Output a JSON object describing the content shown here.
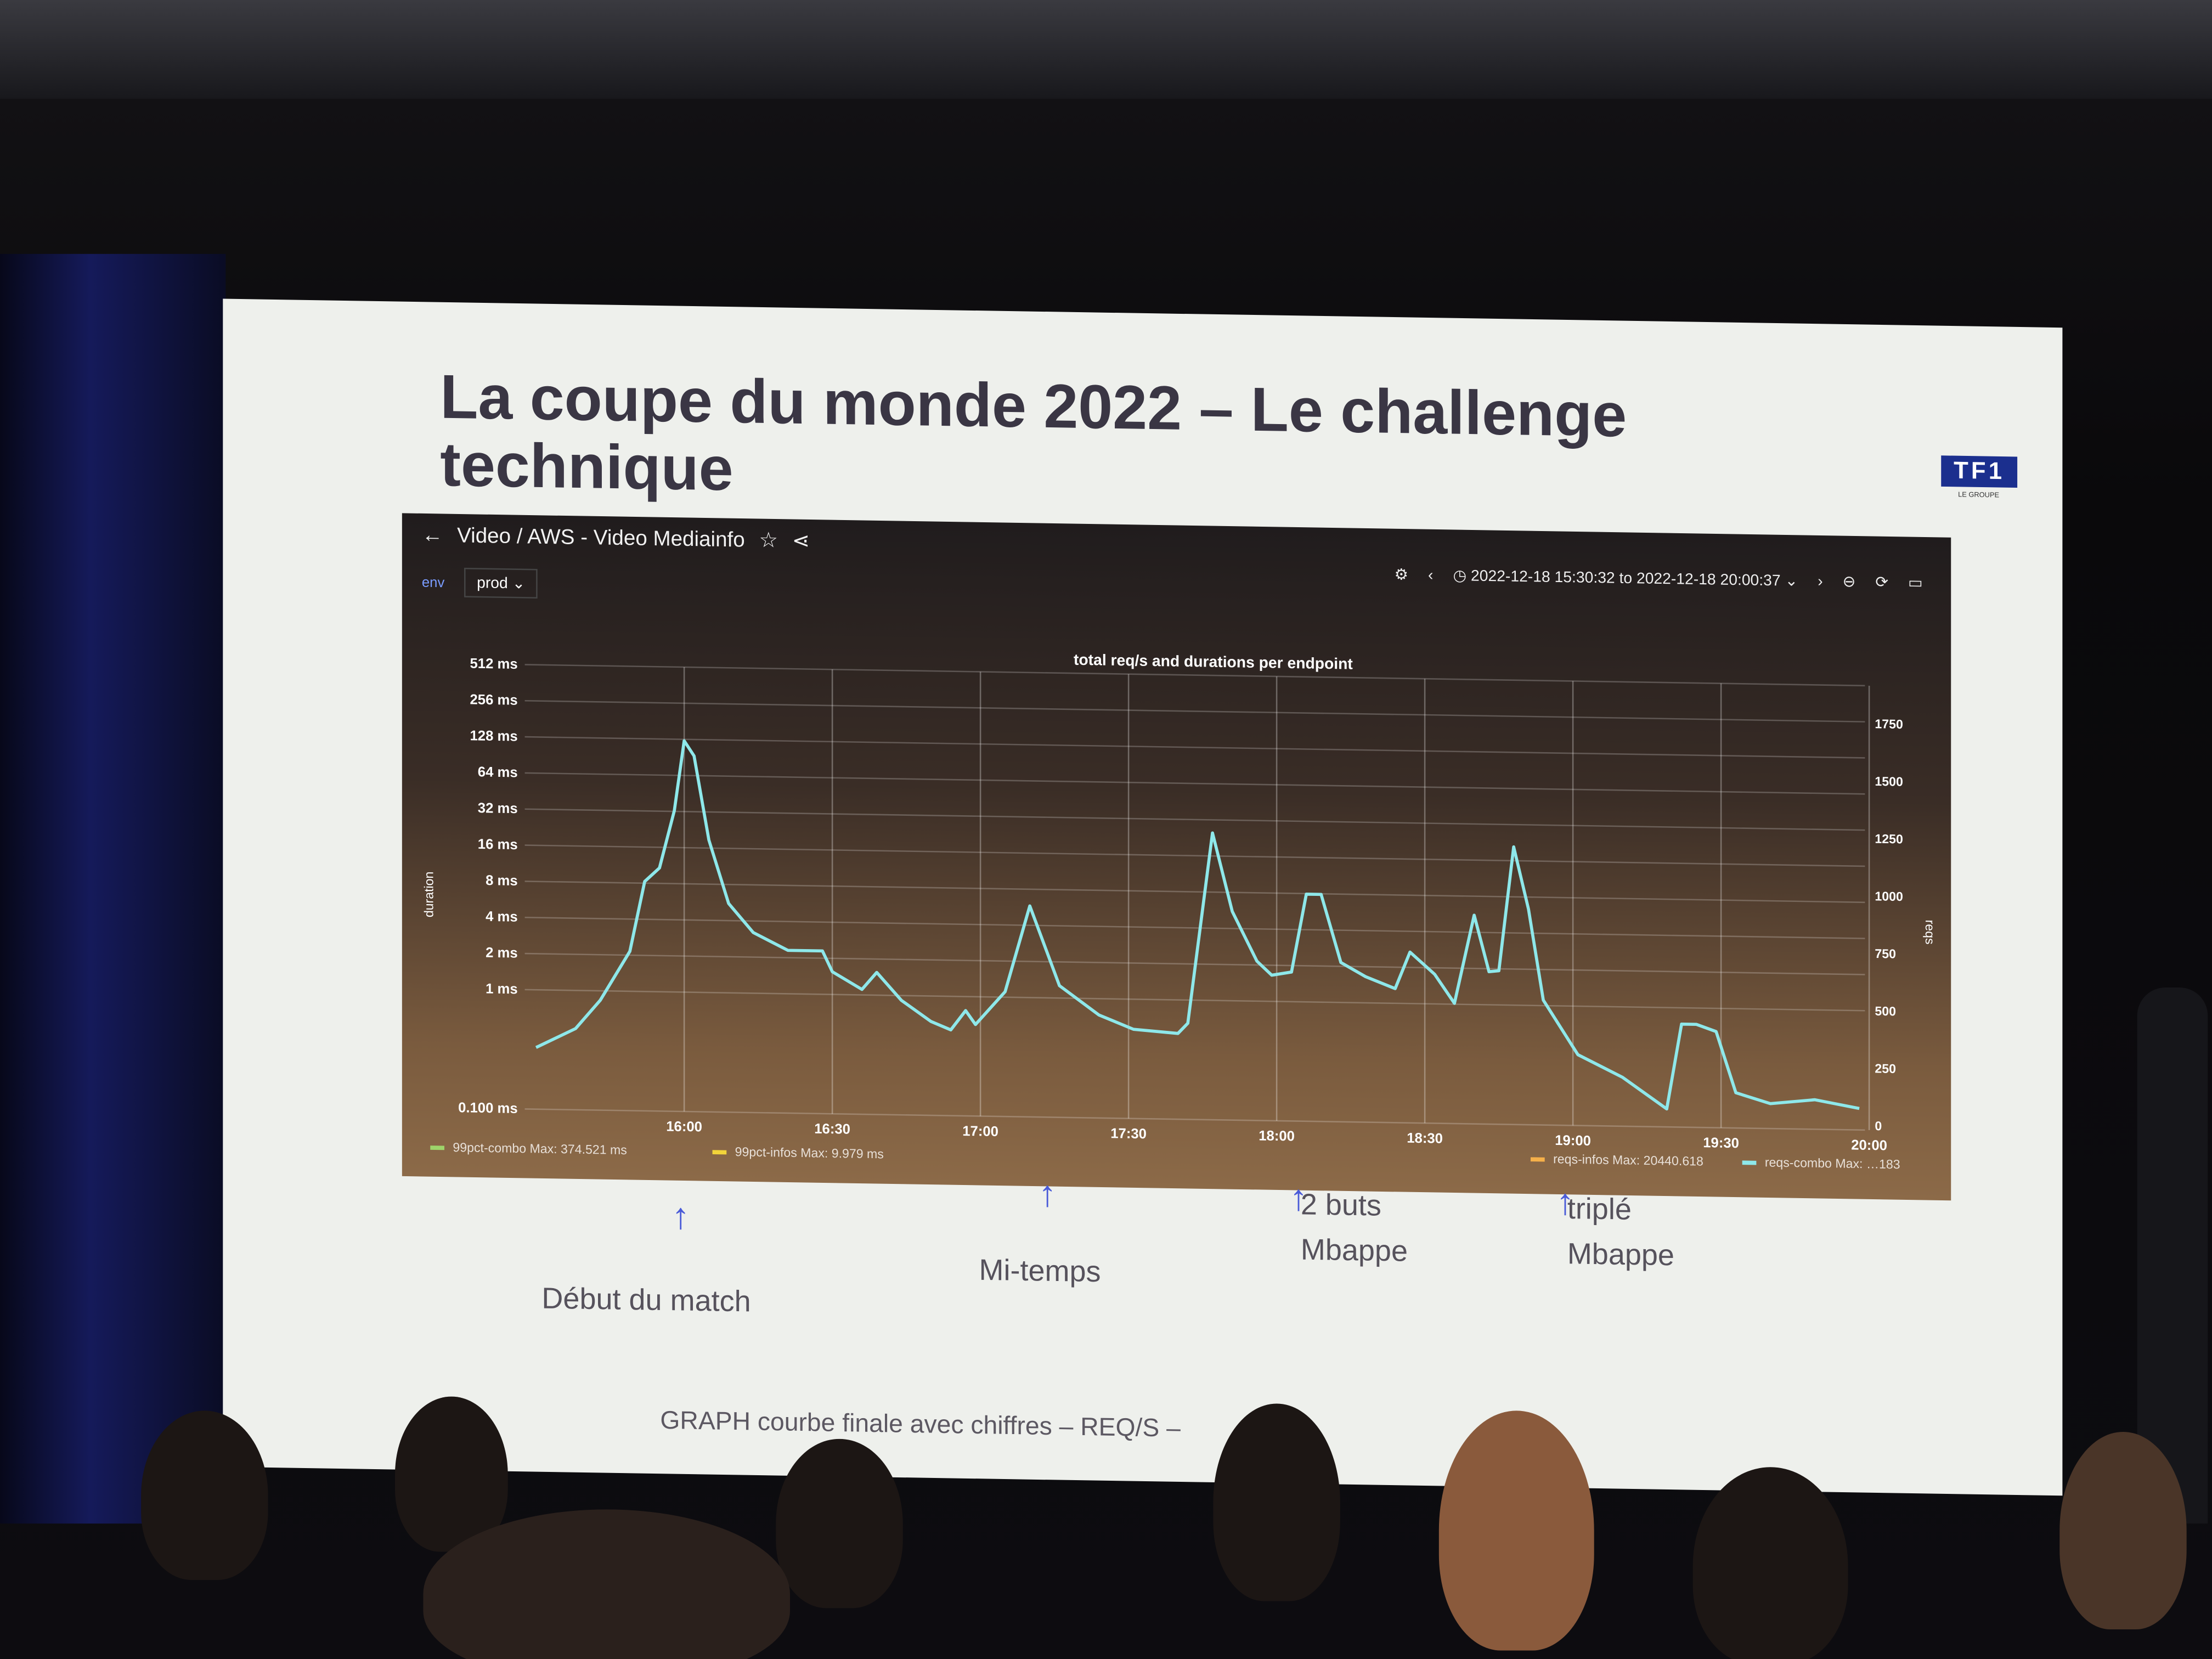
{
  "slide": {
    "title": "La coupe du monde 2022 – Le challenge technique",
    "logo_text": "TF1",
    "logo_subtext": "LE GROUPE",
    "footer": "GRAPH courbe finale avec chiffres – REQ/S –"
  },
  "dashboard": {
    "breadcrumb": "Video / AWS - Video Mediainfo",
    "time_range": "2022-12-18 15:30:32 to 2022-12-18 20:00:37",
    "variable_label": "env",
    "variable_value": "prod",
    "icons": [
      "back-arrow-icon",
      "star-icon",
      "share-icon",
      "settings-icon",
      "chevron-left-icon",
      "clock-icon",
      "chevron-right-icon",
      "zoom-out-icon",
      "refresh-icon",
      "tv-icon"
    ]
  },
  "annotations": [
    {
      "label": "Début du match",
      "time": "16:00"
    },
    {
      "label": "Mi-temps",
      "time": "17:10"
    },
    {
      "label": "2 buts Mbappe",
      "time": "18:00"
    },
    {
      "label": "triplé Mbappe",
      "time": "18:50"
    }
  ],
  "chart_data": {
    "type": "line",
    "title": "total req/s and durations per endpoint",
    "ylabel_left": "duration",
    "ylabel_right": "reqs",
    "left_ticks": [
      "512 ms",
      "256 ms",
      "128 ms",
      "64 ms",
      "32 ms",
      "16 ms",
      "8 ms",
      "4 ms",
      "2 ms",
      "1 ms",
      "0.100 ms"
    ],
    "left_scale": "log",
    "right_ticks": [
      "1750",
      "1500",
      "1250",
      "1000",
      "750",
      "500",
      "250",
      "0"
    ],
    "right_ylim": [
      0,
      1750
    ],
    "x_ticks": [
      "16:00",
      "16:30",
      "17:00",
      "17:30",
      "18:00",
      "18:30",
      "19:00",
      "19:30",
      "20:00"
    ],
    "grid": true,
    "legend": [
      {
        "name": "99pct-combo",
        "stat": "Max: 374.521 ms",
        "color": "#9ed46a"
      },
      {
        "name": "99pct-infos",
        "stat": "Max: 9.979 ms",
        "color": "#f2d43a"
      },
      {
        "name": "reqs-infos",
        "stat": "Max: 20440.618",
        "color": "#f5b04a"
      },
      {
        "name": "reqs-combo",
        "stat": "Max: …183",
        "color": "#8ee8ea"
      }
    ],
    "series": [
      {
        "name": "reqs-combo",
        "axis": "right",
        "color": "#8ee8ea",
        "x": [
          "15:30",
          "15:38",
          "15:43",
          "15:49",
          "15:52",
          "15:55",
          "15:58",
          "16:00",
          "16:02",
          "16:05",
          "16:09",
          "16:14",
          "16:21",
          "16:28",
          "16:30",
          "16:36",
          "16:39",
          "16:44",
          "16:50",
          "16:54",
          "16:57",
          "16:59",
          "17:05",
          "17:10",
          "17:16",
          "17:24",
          "17:31",
          "17:40",
          "17:42",
          "17:47",
          "17:51",
          "17:56",
          "17:59",
          "18:03",
          "18:06",
          "18:09",
          "18:13",
          "18:18",
          "18:24",
          "18:27",
          "18:32",
          "18:36",
          "18:40",
          "18:43",
          "18:45",
          "18:48",
          "18:51",
          "18:54",
          "19:01",
          "19:10",
          "19:19",
          "19:22",
          "19:25",
          "19:29",
          "19:33",
          "19:40",
          "19:49",
          "19:58"
        ],
        "y": [
          250,
          335,
          460,
          675,
          980,
          1040,
          1290,
          1595,
          1530,
          1165,
          890,
          765,
          690,
          690,
          600,
          525,
          600,
          480,
          390,
          355,
          440,
          380,
          525,
          900,
          555,
          430,
          370,
          355,
          400,
          1230,
          890,
          675,
          615,
          630,
          970,
          970,
          675,
          615,
          565,
          725,
          630,
          505,
          890,
          645,
          650,
          1190,
          920,
          525,
          290,
          195,
          60,
          430,
          430,
          400,
          135,
          90,
          110,
          75
        ]
      }
    ]
  }
}
